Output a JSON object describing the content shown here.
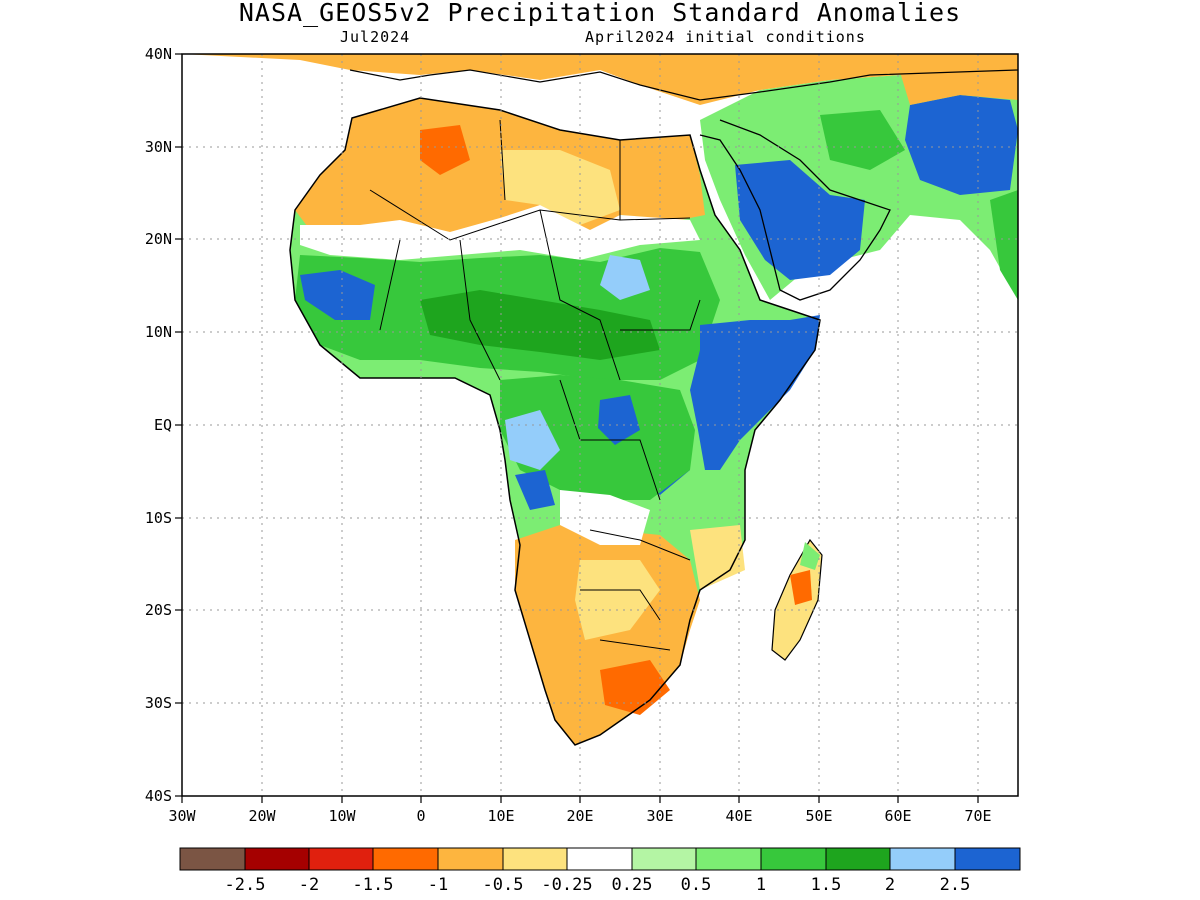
{
  "title": "NASA_GEOS5v2 Precipitation Standard Anomalies",
  "subtitle_left": "Jul2024",
  "subtitle_right": "April2024 initial conditions",
  "axes": {
    "x_ticks": [
      "30W",
      "20W",
      "10W",
      "0",
      "10E",
      "20E",
      "30E",
      "40E",
      "50E",
      "60E",
      "70E"
    ],
    "y_ticks": [
      "40N",
      "30N",
      "20N",
      "10N",
      "EQ",
      "10S",
      "20S",
      "30S",
      "40S"
    ],
    "lon_range": [
      -30,
      75
    ],
    "lat_range": [
      -40,
      40
    ],
    "grid": "dotted"
  },
  "colorbar": {
    "colors": [
      "#7b5544",
      "#a50000",
      "#e0200e",
      "#ff6a00",
      "#fdb53f",
      "#fde27e",
      "#ffffff",
      "#b4f5a4",
      "#7ced73",
      "#37c83c",
      "#1ea51e",
      "#94cdfa",
      "#1c64d2"
    ],
    "labels": [
      "-2.5",
      "-2",
      "-1.5",
      "-1",
      "-0.5",
      "-0.25",
      "0.25",
      "0.5",
      "1",
      "1.5",
      "2",
      "2.5"
    ]
  },
  "regions": [
    {
      "name": "sahara-north",
      "color": "#fdb53f"
    },
    {
      "name": "sahel-green",
      "color": "#37c83c"
    },
    {
      "name": "east-africa-blue",
      "color": "#1c64d2"
    },
    {
      "name": "arabia-blue",
      "color": "#1c64d2"
    },
    {
      "name": "southern-africa-orange",
      "color": "#fdb53f"
    },
    {
      "name": "south-africa-red",
      "color": "#ff6a00"
    }
  ]
}
